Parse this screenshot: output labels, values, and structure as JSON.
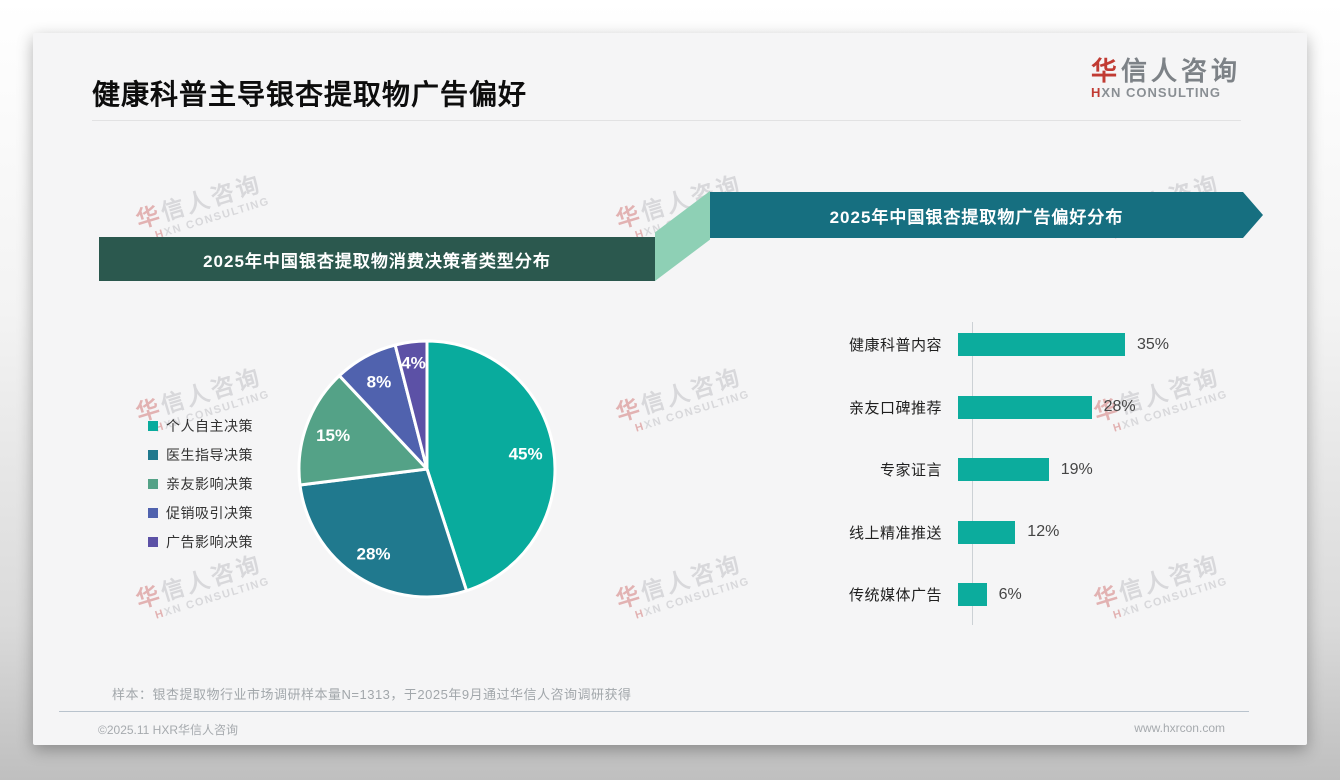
{
  "page": {
    "title": "健康科普主导银杏提取物广告偏好",
    "logo": {
      "zh_accent": "华",
      "zh_rest": "信人咨询",
      "en_accent": "H",
      "en_rest": "XN CONSULTING"
    },
    "watermark": {
      "zh_accent": "华",
      "zh_rest": "信人咨询",
      "en_accent": "H",
      "en_rest": "XN CONSULTING"
    },
    "footnote": "样本：银杏提取物行业市场调研样本量N=1313，于2025年9月通过华信人咨询调研获得",
    "footer": {
      "left": "©2025.11 HXR华信人咨询",
      "right": "www.hxrcon.com"
    }
  },
  "colors": {
    "banner_left_bg": "#2b584e",
    "banner_right_bg": "#166f80",
    "connector": "#8ed0b5",
    "logo_accent_red": "#c13b33",
    "card_bg": "#f5f5f6"
  },
  "chart_data": [
    {
      "type": "pie",
      "title": "2025年中国银杏提取物消费决策者类型分布",
      "labels": [
        "个人自主决策",
        "医生指导决策",
        "亲友影响决策",
        "促销吸引决策",
        "广告影响决策"
      ],
      "values": [
        45,
        28,
        15,
        8,
        4
      ],
      "unit": "%",
      "colors": [
        "#09ab9d",
        "#20798e",
        "#54a287",
        "#5062ae",
        "#5c51a6"
      ],
      "legend_position": "left",
      "start_angle_deg": 0,
      "direction": "clockwise",
      "slice_label_color": "#ffffff"
    },
    {
      "type": "bar",
      "title": "2025年中国银杏提取物广告偏好分布",
      "orientation": "horizontal",
      "categories": [
        "健康科普内容",
        "亲友口碑推荐",
        "专家证言",
        "线上精准推送",
        "传统媒体广告"
      ],
      "values": [
        35,
        28,
        19,
        12,
        6
      ],
      "unit": "%",
      "bar_color": "#0cac9d",
      "xlim": [
        0,
        40
      ],
      "grid": false,
      "value_label_position": "right-of-bar"
    }
  ]
}
